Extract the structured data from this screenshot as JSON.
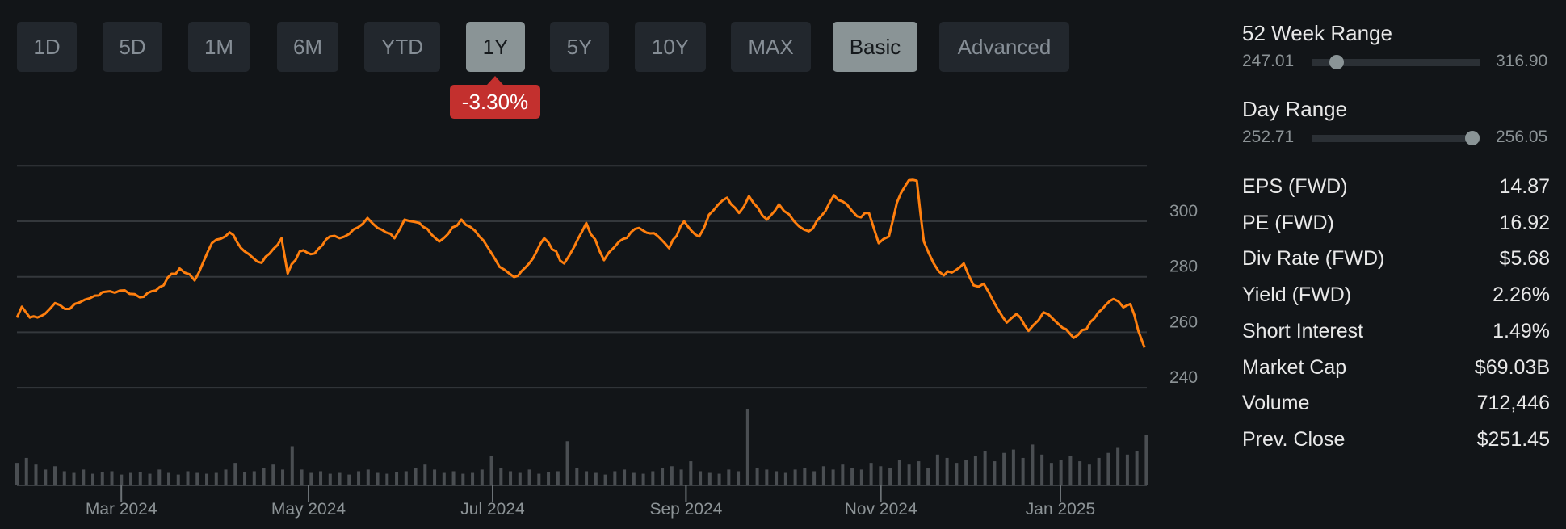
{
  "toolbar": {
    "ranges": [
      "1D",
      "5D",
      "1M",
      "6M",
      "YTD",
      "1Y",
      "5Y",
      "10Y",
      "MAX"
    ],
    "active_range": "1Y",
    "modes": [
      "Basic",
      "Advanced"
    ],
    "active_mode": "Basic"
  },
  "change_badge": "-3.30%",
  "colors": {
    "line": "#ff7f0e",
    "badge": "#c3302e",
    "grid": "#34383c",
    "volume": "#4a4e52"
  },
  "stats_panel": {
    "week52": {
      "title": "52 Week Range",
      "low": "247.01",
      "high": "316.90",
      "position": 0.15
    },
    "day": {
      "title": "Day Range",
      "low": "252.71",
      "high": "256.05",
      "position": 0.95
    },
    "rows": [
      {
        "label": "EPS (FWD)",
        "value": "14.87"
      },
      {
        "label": "PE (FWD)",
        "value": "16.92"
      },
      {
        "label": "Div Rate (FWD)",
        "value": "$5.68"
      },
      {
        "label": "Yield (FWD)",
        "value": "2.26%"
      },
      {
        "label": "Short Interest",
        "value": "1.49%"
      },
      {
        "label": "Market Cap",
        "value": "$69.03B"
      },
      {
        "label": "Volume",
        "value": "712,446"
      },
      {
        "label": "Prev. Close",
        "value": "$251.45"
      }
    ]
  },
  "chart_data": {
    "type": "line",
    "title": "",
    "xlabel": "",
    "ylabel": "",
    "ylim": [
      240,
      320
    ],
    "xlim_days": [
      0,
      368
    ],
    "y_ticks": [
      240,
      260,
      280,
      300
    ],
    "x_ticks": [
      {
        "label": "Mar 2024",
        "day": 34
      },
      {
        "label": "May 2024",
        "day": 95
      },
      {
        "label": "Jul 2024",
        "day": 155
      },
      {
        "label": "Sep 2024",
        "day": 218
      },
      {
        "label": "Nov 2024",
        "day": 281.5
      },
      {
        "label": "Jan 2025",
        "day": 340
      }
    ],
    "grid": true,
    "price_series": {
      "day": [
        0,
        1.6,
        4.2,
        9.1,
        12.4,
        17.2,
        20.5,
        25.4,
        30.3,
        35.1,
        40,
        46.5,
        53,
        57.9,
        63.5,
        69.3,
        74.2,
        79.7,
        86.2,
        88.2,
        92.1,
        97,
        101.9,
        106.7,
        114.2,
        117.5,
        123,
        126.3,
        131.1,
        137.6,
        144.8,
        150.7,
        157.2,
        162,
        166.9,
        171.8,
        178.3,
        181.6,
        185.5,
        191.3,
        196.2,
        202.7,
        207.6,
        212.5,
        217.4,
        222.3,
        225.5,
        231.4,
        235.3,
        238.5,
        244.4,
        248.3,
        253.2,
        258,
        262,
        266.2,
        270.4,
        273.7,
        277.6,
        280.8,
        284.1,
        286.7,
        290.6,
        293.2,
        295.5,
        298.7,
        302,
        308.5,
        311.7,
        315,
        319.9,
        322.5,
        325.7,
        329.6,
        334.5,
        339.4,
        344.3,
        348.5,
        352.4,
        357.3,
        360.5,
        362.8,
        365.4,
        367.4
      ],
      "price": [
        265.3,
        269.2,
        265.3,
        266.6,
        270.5,
        268.4,
        270.8,
        273.2,
        274.8,
        275.1,
        272.6,
        276.3,
        283.0,
        278.7,
        292.1,
        296.0,
        289.1,
        285.0,
        293.9,
        281.2,
        289.1,
        288.4,
        294.5,
        294.5,
        301.2,
        297.6,
        293.9,
        300.6,
        299.4,
        292.7,
        300.6,
        294.5,
        283.6,
        279.9,
        284.8,
        293.9,
        284.8,
        290.9,
        299.4,
        286.0,
        292.7,
        297.6,
        295.7,
        290.3,
        300.0,
        294.5,
        302.4,
        308.5,
        303.0,
        309.1,
        300.6,
        306.1,
        300.0,
        296.4,
        301.8,
        309.4,
        306.1,
        301.8,
        303.0,
        292.1,
        294.5,
        306.7,
        314.8,
        314.6,
        292.7,
        284.8,
        280.5,
        284.8,
        276.9,
        277.5,
        267.8,
        263.5,
        266.6,
        260.5,
        267.2,
        262.9,
        258.0,
        261.1,
        267.2,
        272.0,
        269.0,
        270.2,
        260.5,
        254.5
      ]
    },
    "volume_thousands": [
      1300,
      1600,
      1200,
      900,
      1100,
      800,
      700,
      900,
      650,
      750,
      800,
      600,
      700,
      750,
      650,
      900,
      700,
      600,
      800,
      700,
      650,
      700,
      900,
      1300,
      750,
      800,
      1000,
      1200,
      900,
      2300,
      900,
      700,
      800,
      650,
      700,
      600,
      800,
      900,
      700,
      650,
      750,
      800,
      1000,
      1200,
      900,
      700,
      800,
      650,
      700,
      900,
      1700,
      1000,
      800,
      700,
      900,
      650,
      750,
      800,
      2600,
      1000,
      800,
      700,
      600,
      800,
      900,
      700,
      650,
      800,
      1000,
      1100,
      900,
      1400,
      800,
      700,
      650,
      900,
      800,
      4500,
      1000,
      900,
      800,
      700,
      900,
      1000,
      800,
      1100,
      900,
      1200,
      1000,
      900,
      1300,
      1100,
      1000,
      1500,
      1200,
      1400,
      1000,
      1800,
      1600,
      1300,
      1500,
      1700,
      2000,
      1400,
      1900,
      2100,
      1600,
      2400,
      1800,
      1300,
      1500,
      1700,
      1400,
      1200,
      1600,
      1900,
      2200,
      1800,
      2000,
      3000
    ]
  }
}
